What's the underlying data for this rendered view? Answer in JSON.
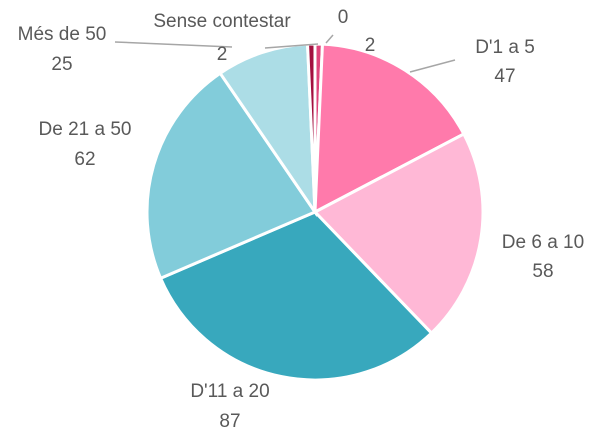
{
  "chart_data": {
    "type": "pie",
    "categories": [
      "0",
      "D'1 a 5",
      "De 6 a 10",
      "D'11 a 20",
      "De 21 a 50",
      "Més de 50",
      "Sense contestar"
    ],
    "values": [
      2,
      47,
      58,
      87,
      62,
      25,
      2
    ],
    "colors": [
      "#e0457b",
      "#ff7aab",
      "#ffb8d6",
      "#38a8bd",
      "#82ccda",
      "#acdde6",
      "#a3103f"
    ]
  }
}
